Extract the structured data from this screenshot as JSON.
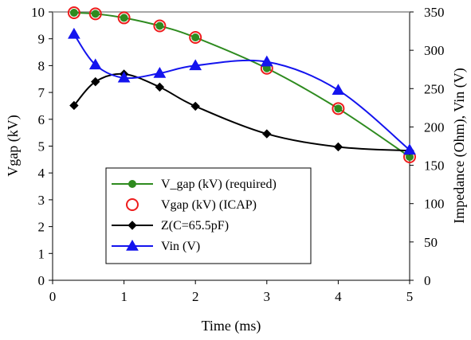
{
  "chart_data": {
    "type": "line",
    "xlabel": "Time (ms)",
    "ylabel_left": "Vgap (kV)",
    "ylabel_right": "Impedance (Ohm), Vin (V)",
    "xlim": [
      0,
      5
    ],
    "ylim_left": [
      0,
      10
    ],
    "ylim_right": [
      0,
      350
    ],
    "x_ticks": [
      "0",
      "1",
      "2",
      "3",
      "4",
      "5"
    ],
    "y_left_ticks": [
      "0",
      "1",
      "2",
      "3",
      "4",
      "5",
      "6",
      "7",
      "8",
      "9",
      "10"
    ],
    "y_right_ticks": [
      "0",
      "50",
      "100",
      "150",
      "200",
      "250",
      "300",
      "350"
    ],
    "grid": false,
    "legend_position": "lower-left",
    "series": [
      {
        "name": "V_gap (kV) (required)",
        "axis": "left",
        "color": "#2e8b1f",
        "marker": "filled-circle",
        "line": "smooth",
        "x": [
          0.3,
          0.6,
          1.0,
          1.5,
          2.0,
          3.0,
          4.0,
          5.0
        ],
        "y": [
          9.97,
          9.93,
          9.78,
          9.48,
          9.05,
          7.9,
          6.4,
          4.6
        ]
      },
      {
        "name": "Vgap (kV) (ICAP)",
        "axis": "left",
        "color": "#ee1c1c",
        "marker": "open-circle",
        "line": "none",
        "x": [
          0.3,
          0.6,
          1.0,
          1.5,
          2.0,
          3.0,
          4.0,
          5.0
        ],
        "y": [
          9.97,
          9.93,
          9.78,
          9.48,
          9.05,
          7.9,
          6.4,
          4.6
        ]
      },
      {
        "name": "Z(C=65.5pF)",
        "axis": "right",
        "color": "#000000",
        "marker": "diamond",
        "line": "smooth",
        "x": [
          0.3,
          0.6,
          1.0,
          1.5,
          2.0,
          3.0,
          4.0,
          5.0
        ],
        "y": [
          228,
          259,
          269,
          252,
          227,
          191,
          174,
          169
        ]
      },
      {
        "name": "Vin (V)",
        "axis": "right",
        "color": "#1414ee",
        "marker": "triangle",
        "line": "smooth",
        "x": [
          0.3,
          0.6,
          1.0,
          1.5,
          2.0,
          3.0,
          4.0,
          5.0
        ],
        "y": [
          321,
          281,
          264,
          270,
          280,
          285,
          248,
          170
        ]
      }
    ]
  }
}
